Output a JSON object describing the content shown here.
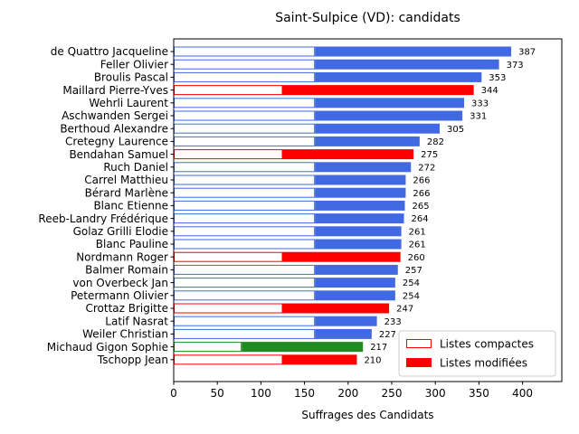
{
  "chart_data": {
    "type": "bar",
    "orientation": "horizontal",
    "title": "Saint-Sulpice (VD): candidats",
    "xlabel": "Suffrages des Candidats",
    "ylabel": "",
    "xlim": [
      0,
      445
    ],
    "xticks": [
      0,
      50,
      100,
      150,
      200,
      250,
      300,
      350,
      400
    ],
    "grid": false,
    "legend_position": "bottom-right",
    "legend": [
      {
        "label": "Listes compactes",
        "style": "outline",
        "color": "#ff0000"
      },
      {
        "label": "Listes modifiées",
        "style": "filled",
        "color": "#ff0000"
      }
    ],
    "candidates": [
      {
        "name": "de Quattro Jacqueline",
        "total": 387,
        "compact": 162,
        "color": "#4169e1"
      },
      {
        "name": "Feller Olivier",
        "total": 373,
        "compact": 162,
        "color": "#4169e1"
      },
      {
        "name": "Broulis Pascal",
        "total": 353,
        "compact": 162,
        "color": "#4169e1"
      },
      {
        "name": "Maillard Pierre-Yves",
        "total": 344,
        "compact": 125,
        "color": "#ff0000"
      },
      {
        "name": "Wehrli Laurent",
        "total": 333,
        "compact": 162,
        "color": "#4169e1"
      },
      {
        "name": "Aschwanden Sergei",
        "total": 331,
        "compact": 162,
        "color": "#4169e1"
      },
      {
        "name": "Berthoud Alexandre",
        "total": 305,
        "compact": 162,
        "color": "#4169e1"
      },
      {
        "name": "Cretegny Laurence",
        "total": 282,
        "compact": 162,
        "color": "#4169e1"
      },
      {
        "name": "Bendahan Samuel",
        "total": 275,
        "compact": 125,
        "color": "#ff0000"
      },
      {
        "name": "Ruch Daniel",
        "total": 272,
        "compact": 162,
        "color": "#4169e1"
      },
      {
        "name": "Carrel Matthieu",
        "total": 266,
        "compact": 162,
        "color": "#4169e1"
      },
      {
        "name": "Bérard Marlène",
        "total": 266,
        "compact": 162,
        "color": "#4169e1"
      },
      {
        "name": "Blanc Etienne",
        "total": 265,
        "compact": 162,
        "color": "#4169e1"
      },
      {
        "name": "Reeb-Landry Frédérique",
        "total": 264,
        "compact": 162,
        "color": "#4169e1"
      },
      {
        "name": "Golaz Grilli Elodie",
        "total": 261,
        "compact": 162,
        "color": "#4169e1"
      },
      {
        "name": "Blanc Pauline",
        "total": 261,
        "compact": 162,
        "color": "#4169e1"
      },
      {
        "name": "Nordmann Roger",
        "total": 260,
        "compact": 125,
        "color": "#ff0000"
      },
      {
        "name": "Balmer Romain",
        "total": 257,
        "compact": 162,
        "color": "#4169e1"
      },
      {
        "name": "von Overbeck Jan",
        "total": 254,
        "compact": 162,
        "color": "#4169e1"
      },
      {
        "name": "Petermann Olivier",
        "total": 254,
        "compact": 162,
        "color": "#4169e1"
      },
      {
        "name": "Crottaz Brigitte",
        "total": 247,
        "compact": 125,
        "color": "#ff0000"
      },
      {
        "name": "Latif Nasrat",
        "total": 233,
        "compact": 162,
        "color": "#4169e1"
      },
      {
        "name": "Weiler Christian",
        "total": 227,
        "compact": 162,
        "color": "#4169e1"
      },
      {
        "name": "Michaud Gigon Sophie",
        "total": 217,
        "compact": 78,
        "color": "#228b22"
      },
      {
        "name": "Tschopp Jean",
        "total": 210,
        "compact": 125,
        "color": "#ff0000"
      }
    ]
  }
}
